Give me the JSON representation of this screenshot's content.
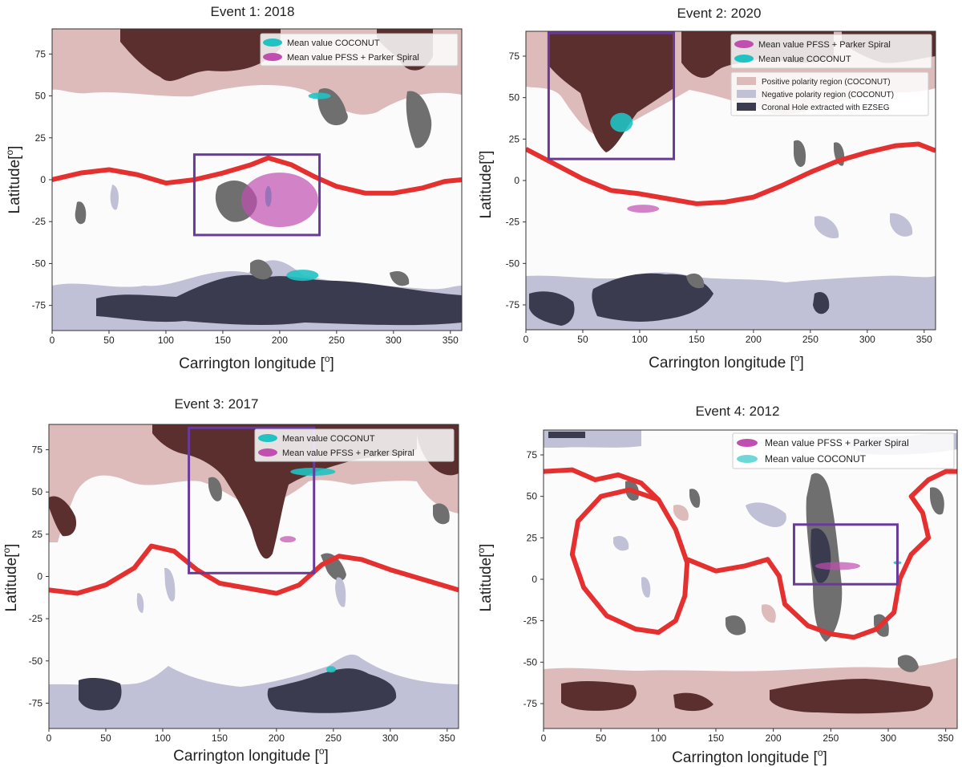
{
  "figure": {
    "colors": {
      "positive": "#ddbbbb",
      "negative": "#c0c0d6",
      "hole": "#3a3b4f",
      "brown": "#5a2f2e",
      "gray": "#6f6f6f",
      "neutral": "#e53030",
      "coconut": "#20c2c2",
      "pfss": "#c04fb0",
      "box": "#6a3a9a"
    }
  },
  "chart_data": [
    {
      "type": "scatter",
      "title": "Event 1: 2018",
      "xlabel": "Carrington longitude [",
      "ylabel": "Latitude[",
      "label_unit": "o",
      "label_close": "]",
      "xlim": [
        0,
        360
      ],
      "ylim": [
        -90,
        90
      ],
      "xticks": [
        "0",
        "50",
        "100",
        "150",
        "200",
        "250",
        "300",
        "350"
      ],
      "yticks": [
        "75",
        "50",
        "25",
        "0",
        "-25",
        "-50",
        "-75"
      ],
      "legend": [
        "Mean value COCONUT",
        "Mean value PFSS + Parker Spiral"
      ],
      "legend_colors": [
        "coconut",
        "pfss"
      ],
      "legend_position": "top-right",
      "series": [
        {
          "name": "Mean value COCONUT",
          "points": [
            [
              235,
              50
            ],
            [
              220,
              -57
            ],
            [
              190,
              -10
            ]
          ]
        },
        {
          "name": "Mean value PFSS + Parker Spiral",
          "points": [
            [
              200,
              -12
            ]
          ]
        }
      ],
      "neutral_line": [
        [
          0,
          0
        ],
        [
          25,
          4
        ],
        [
          50,
          6
        ],
        [
          75,
          3
        ],
        [
          100,
          -2
        ],
        [
          125,
          0
        ],
        [
          150,
          4
        ],
        [
          175,
          9
        ],
        [
          190,
          13
        ],
        [
          210,
          9
        ],
        [
          230,
          2
        ],
        [
          250,
          -4
        ],
        [
          275,
          -8
        ],
        [
          300,
          -8
        ],
        [
          325,
          -5
        ],
        [
          345,
          -1
        ],
        [
          360,
          0
        ]
      ],
      "highlight_box": {
        "lon": [
          125,
          235
        ],
        "lat": [
          -33,
          15
        ]
      }
    },
    {
      "type": "scatter",
      "title": "Event 2: 2020",
      "xlabel": "Carrington longitude [",
      "ylabel": "Latitude[",
      "label_unit": "o",
      "label_close": "]",
      "xlim": [
        0,
        360
      ],
      "ylim": [
        -90,
        90
      ],
      "xticks": [
        "0",
        "50",
        "100",
        "150",
        "200",
        "250",
        "300",
        "350"
      ],
      "yticks": [
        "75",
        "50",
        "25",
        "0",
        "-25",
        "-50",
        "-75"
      ],
      "legend": [
        "Mean value PFSS + Parker Spiral",
        "Mean value COCONUT"
      ],
      "legend_colors": [
        "pfss",
        "coconut"
      ],
      "legend_position": "top-right",
      "legend2": [
        "Positive polarity region (COCONUT)",
        "Negative polarity region (COCONUT)",
        "Coronal Hole extracted with EZSEG"
      ],
      "legend2_colors": [
        "positive",
        "negative",
        "hole"
      ],
      "series": [
        {
          "name": "Mean value PFSS + Parker Spiral",
          "points": [
            [
              103,
              -17
            ]
          ]
        },
        {
          "name": "Mean value COCONUT",
          "points": [
            [
              84,
              35
            ]
          ]
        }
      ],
      "neutral_line": [
        [
          0,
          19
        ],
        [
          25,
          10
        ],
        [
          50,
          1
        ],
        [
          75,
          -6
        ],
        [
          100,
          -8
        ],
        [
          125,
          -11
        ],
        [
          150,
          -14
        ],
        [
          175,
          -13
        ],
        [
          200,
          -10
        ],
        [
          225,
          -3
        ],
        [
          250,
          5
        ],
        [
          275,
          12
        ],
        [
          300,
          17
        ],
        [
          325,
          21
        ],
        [
          345,
          22
        ],
        [
          360,
          18
        ]
      ],
      "highlight_box": {
        "lon": [
          20,
          130
        ],
        "lat": [
          13,
          89
        ]
      }
    },
    {
      "type": "scatter",
      "title": "Event 3: 2017",
      "xlabel": "Carrington longitude [",
      "ylabel": "Latitude[",
      "label_unit": "o",
      "label_close": "]",
      "xlim": [
        0,
        360
      ],
      "ylim": [
        -90,
        90
      ],
      "xticks": [
        "0",
        "50",
        "100",
        "150",
        "200",
        "250",
        "300",
        "350"
      ],
      "yticks": [
        "75",
        "50",
        "25",
        "0",
        "-25",
        "-50",
        "-75"
      ],
      "legend": [
        "Mean value COCONUT",
        "Mean value PFSS + Parker Spiral"
      ],
      "legend_colors": [
        "coconut",
        "pfss"
      ],
      "legend_position": "top-right",
      "series": [
        {
          "name": "Mean value COCONUT",
          "points": [
            [
              232,
              62
            ],
            [
              248,
              -55
            ]
          ]
        },
        {
          "name": "Mean value PFSS + Parker Spiral",
          "points": [
            [
              210,
              22
            ]
          ]
        }
      ],
      "neutral_line": [
        [
          0,
          -8
        ],
        [
          25,
          -10
        ],
        [
          50,
          -5
        ],
        [
          75,
          5
        ],
        [
          90,
          18
        ],
        [
          110,
          15
        ],
        [
          130,
          4
        ],
        [
          150,
          -4
        ],
        [
          175,
          -7
        ],
        [
          200,
          -10
        ],
        [
          220,
          -5
        ],
        [
          240,
          7
        ],
        [
          255,
          12
        ],
        [
          275,
          10
        ],
        [
          300,
          4
        ],
        [
          325,
          -1
        ],
        [
          350,
          -6
        ],
        [
          360,
          -8
        ]
      ],
      "highlight_box": {
        "lon": [
          123,
          233
        ],
        "lat": [
          2,
          88
        ]
      }
    },
    {
      "type": "scatter",
      "title": "Event 4: 2012",
      "xlabel": "Carrington longitude [",
      "ylabel": "Latitude[",
      "label_unit": "o",
      "label_close": "]",
      "xlim": [
        0,
        360
      ],
      "ylim": [
        -90,
        90
      ],
      "xticks": [
        "0",
        "50",
        "100",
        "150",
        "200",
        "250",
        "300",
        "350"
      ],
      "yticks": [
        "75",
        "50",
        "25",
        "0",
        "-25",
        "-50",
        "-75"
      ],
      "legend": [
        "Mean value PFSS + Parker Spiral",
        "Mean value COCONUT"
      ],
      "legend_colors": [
        "pfss",
        "coconut"
      ],
      "legend_position": "top-right",
      "series": [
        {
          "name": "Mean value PFSS + Parker Spiral",
          "points": [
            [
              256,
              8
            ]
          ]
        },
        {
          "name": "Mean value COCONUT",
          "points": [
            [
              308,
              10
            ]
          ]
        }
      ],
      "neutral_line": [
        [
          0,
          65
        ],
        [
          25,
          66
        ],
        [
          45,
          60
        ],
        [
          65,
          63
        ],
        [
          85,
          58
        ],
        [
          100,
          48
        ],
        [
          115,
          30
        ],
        [
          125,
          10
        ],
        [
          123,
          -10
        ],
        [
          115,
          -25
        ],
        [
          100,
          -32
        ],
        [
          80,
          -30
        ],
        [
          55,
          -22
        ],
        [
          35,
          -5
        ],
        [
          25,
          15
        ],
        [
          30,
          35
        ],
        [
          50,
          50
        ],
        [
          75,
          54
        ],
        [
          100,
          48
        ]
      ],
      "neutral_line2": [
        [
          125,
          12
        ],
        [
          150,
          5
        ],
        [
          175,
          8
        ],
        [
          195,
          12
        ],
        [
          205,
          2
        ],
        [
          210,
          -15
        ],
        [
          230,
          -28
        ],
        [
          250,
          -33
        ],
        [
          270,
          -35
        ],
        [
          290,
          -30
        ],
        [
          305,
          -20
        ],
        [
          310,
          0
        ],
        [
          320,
          15
        ],
        [
          335,
          25
        ],
        [
          330,
          40
        ],
        [
          320,
          50
        ],
        [
          335,
          60
        ],
        [
          350,
          65
        ],
        [
          360,
          65
        ]
      ],
      "highlight_box": {
        "lon": [
          218,
          308
        ],
        "lat": [
          -3,
          33
        ]
      }
    }
  ]
}
